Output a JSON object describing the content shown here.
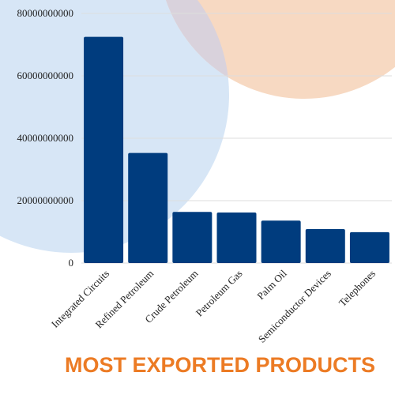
{
  "colors": {
    "bar": "#003c7e",
    "title": "#ec7b24",
    "bg_blue_circle": "#d7e6f6",
    "bg_peach_circle": "#f7d9c2",
    "bg_overlap": "#d9d2dc"
  },
  "chart_data": {
    "type": "bar",
    "title": "MOST EXPORTED PRODUCTS",
    "xlabel": "",
    "ylabel": "",
    "ylim": [
      0,
      80000000000
    ],
    "yticks": [
      0,
      20000000000,
      40000000000,
      60000000000,
      80000000000
    ],
    "ytick_labels": [
      "0",
      "20000000000",
      "40000000000",
      "60000000000",
      "80000000000"
    ],
    "grid": true,
    "legend": "none",
    "categories": [
      "Integrated Circuits",
      "Refined Petroleum",
      "Crude Petroleum",
      "Petroleum Gas",
      "Palm Oil",
      "Semiconductor Devices",
      "Telephones"
    ],
    "values": [
      72500000000,
      35300000000,
      16400000000,
      16200000000,
      13600000000,
      10900000000,
      9900000000
    ]
  }
}
